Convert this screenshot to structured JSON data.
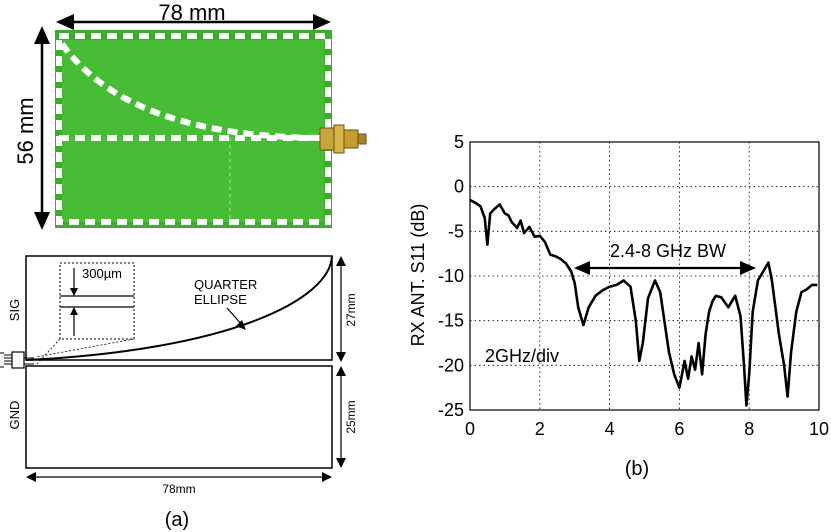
{
  "figure_a": {
    "photo_width_label": "78 mm",
    "photo_height_label": "56 mm",
    "sig_label": "SIG",
    "gnd_label": "GND",
    "gap_label": "300µm",
    "quarter_label": "QUARTER",
    "ellipse_label": "ELLIPSE",
    "dim_27_label": "27mm",
    "dim_25_label": "25mm",
    "dim_78_label": "78mm",
    "caption": "(a)",
    "board_color": "#3cb02c"
  },
  "figure_b": {
    "caption": "(b)",
    "bw_label": "2.4-8 GHz BW",
    "div_label": "2GHz/div"
  },
  "chart_data": {
    "type": "line",
    "title": "",
    "xlabel": "",
    "ylabel": "RX ANT. S11 (dB)",
    "xlim": [
      0,
      10
    ],
    "ylim": [
      -25,
      5
    ],
    "xticks": [
      0,
      2,
      4,
      6,
      8,
      10
    ],
    "yticks": [
      5,
      0,
      -5,
      -10,
      -15,
      -20,
      -25
    ],
    "grid": true,
    "series": [
      {
        "name": "S11",
        "x": [
          0,
          0.15,
          0.3,
          0.42,
          0.5,
          0.58,
          0.7,
          0.85,
          1.0,
          1.1,
          1.2,
          1.35,
          1.45,
          1.55,
          1.7,
          1.85,
          2.0,
          2.15,
          2.3,
          2.45,
          2.6,
          2.75,
          2.9,
          3.0,
          3.1,
          3.25,
          3.4,
          3.6,
          3.8,
          4.0,
          4.2,
          4.4,
          4.6,
          4.75,
          4.85,
          4.95,
          5.1,
          5.3,
          5.45,
          5.55,
          5.7,
          5.85,
          6.0,
          6.15,
          6.25,
          6.35,
          6.45,
          6.55,
          6.65,
          6.75,
          6.85,
          6.95,
          7.05,
          7.2,
          7.4,
          7.6,
          7.75,
          7.85,
          7.92,
          8.0,
          8.1,
          8.25,
          8.4,
          8.55,
          8.65,
          8.75,
          8.85,
          9.0,
          9.1,
          9.2,
          9.35,
          9.5,
          9.65,
          9.8,
          9.95
        ],
        "y": [
          -1.5,
          -1.8,
          -2.2,
          -3.5,
          -6.5,
          -3,
          -2.5,
          -2,
          -3,
          -3.2,
          -4,
          -4.6,
          -3.8,
          -5.2,
          -4.5,
          -5.6,
          -5.5,
          -6.2,
          -7.6,
          -7.8,
          -8.1,
          -8.6,
          -9.5,
          -10.8,
          -13.5,
          -15.5,
          -13.5,
          -12.2,
          -11.6,
          -11.2,
          -11.0,
          -10.5,
          -11.2,
          -15,
          -19.5,
          -17.5,
          -12.5,
          -10.5,
          -11.8,
          -14.5,
          -18.5,
          -21,
          -22.5,
          -19.5,
          -21.5,
          -19,
          -20.5,
          -17.5,
          -21,
          -16.5,
          -14,
          -12.8,
          -12.2,
          -12.4,
          -13.5,
          -12.2,
          -14.5,
          -20,
          -24.5,
          -21,
          -14,
          -10.5,
          -9.5,
          -8.5,
          -10.5,
          -13.5,
          -16.5,
          -20,
          -23.5,
          -18.5,
          -14,
          -11.8,
          -11.5,
          -11,
          -11
        ]
      }
    ]
  }
}
